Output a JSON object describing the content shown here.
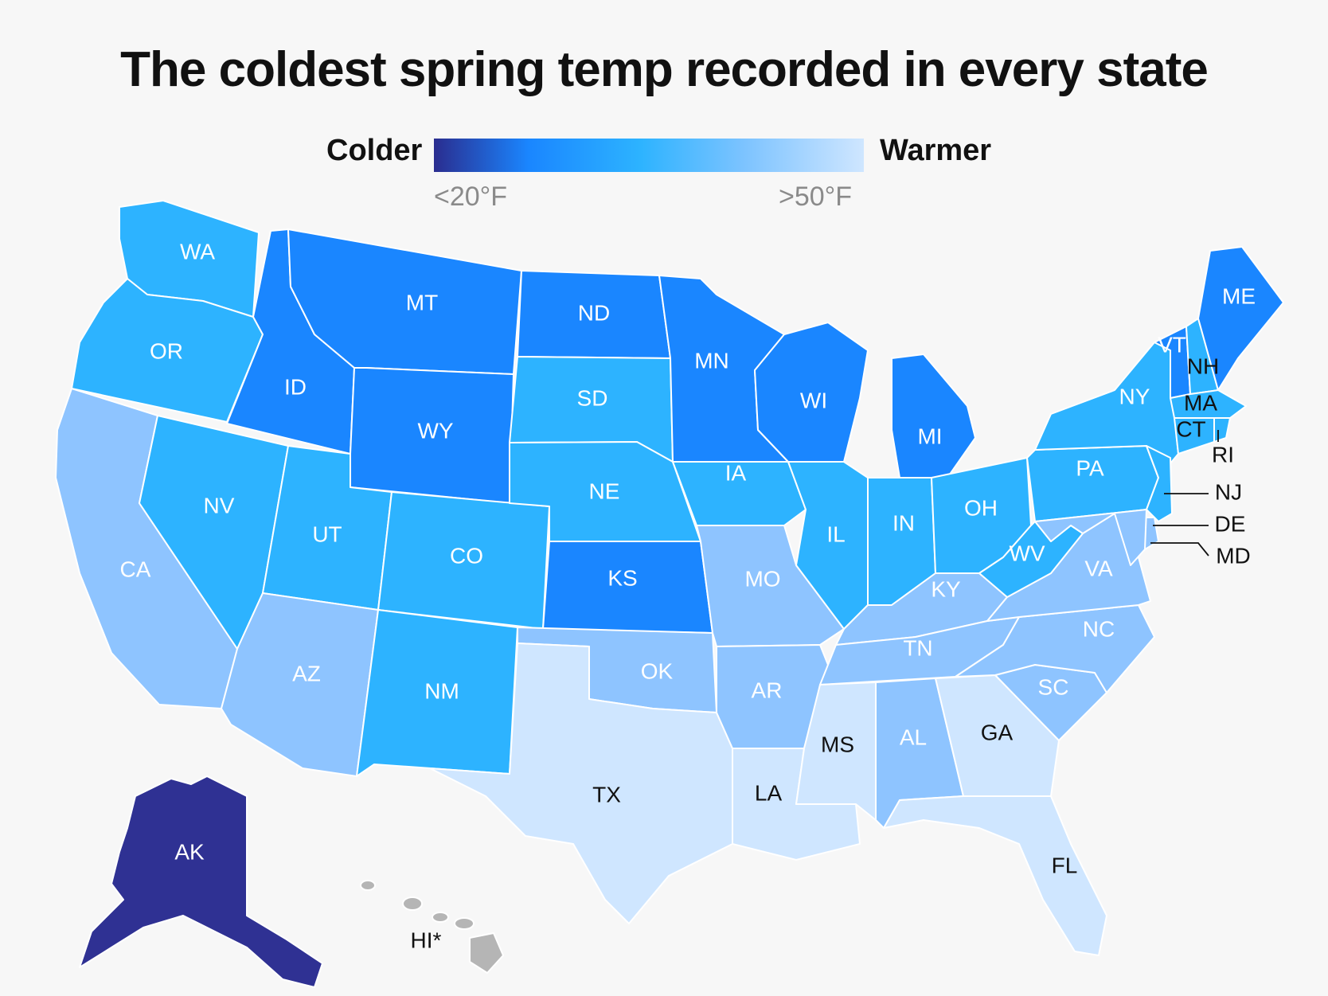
{
  "title": "The coldest spring temp recorded in every state",
  "legend": {
    "colder_label": "Colder",
    "warmer_label": "Warmer",
    "low_tick": "<20°F",
    "high_tick": ">50°F",
    "gradient_colors": [
      "#2a2d8f",
      "#1a86ff",
      "#2db3ff",
      "#7cc3ff",
      "#cfe6ff"
    ]
  },
  "colors": {
    "under_20": "#2f3193",
    "cold": "#1a86ff",
    "cool": "#2db3ff",
    "mild": "#8ec4ff",
    "warm": "#cfe6ff",
    "no_data": "#b5b5b5"
  },
  "states": {
    "WA": {
      "label": "WA",
      "bin": "cool"
    },
    "OR": {
      "label": "OR",
      "bin": "cool"
    },
    "CA": {
      "label": "CA",
      "bin": "mild"
    },
    "ID": {
      "label": "ID",
      "bin": "cold"
    },
    "NV": {
      "label": "NV",
      "bin": "cool"
    },
    "MT": {
      "label": "MT",
      "bin": "cold"
    },
    "WY": {
      "label": "WY",
      "bin": "cold"
    },
    "UT": {
      "label": "UT",
      "bin": "cool"
    },
    "AZ": {
      "label": "AZ",
      "bin": "mild"
    },
    "CO": {
      "label": "CO",
      "bin": "cool"
    },
    "NM": {
      "label": "NM",
      "bin": "cool"
    },
    "ND": {
      "label": "ND",
      "bin": "cold"
    },
    "SD": {
      "label": "SD",
      "bin": "cool"
    },
    "NE": {
      "label": "NE",
      "bin": "cool"
    },
    "KS": {
      "label": "KS",
      "bin": "cold"
    },
    "OK": {
      "label": "OK",
      "bin": "mild"
    },
    "TX": {
      "label": "TX",
      "bin": "warm"
    },
    "MN": {
      "label": "MN",
      "bin": "cold"
    },
    "IA": {
      "label": "IA",
      "bin": "cool"
    },
    "MO": {
      "label": "MO",
      "bin": "mild"
    },
    "AR": {
      "label": "AR",
      "bin": "mild"
    },
    "LA": {
      "label": "LA",
      "bin": "warm"
    },
    "WI": {
      "label": "WI",
      "bin": "cold"
    },
    "IL": {
      "label": "IL",
      "bin": "cool"
    },
    "MI": {
      "label": "MI",
      "bin": "cold"
    },
    "IN": {
      "label": "IN",
      "bin": "cool"
    },
    "OH": {
      "label": "OH",
      "bin": "cool"
    },
    "KY": {
      "label": "KY",
      "bin": "mild"
    },
    "TN": {
      "label": "TN",
      "bin": "mild"
    },
    "MS": {
      "label": "MS",
      "bin": "warm"
    },
    "AL": {
      "label": "AL",
      "bin": "mild"
    },
    "GA": {
      "label": "GA",
      "bin": "warm"
    },
    "FL": {
      "label": "FL",
      "bin": "warm"
    },
    "SC": {
      "label": "SC",
      "bin": "mild"
    },
    "NC": {
      "label": "NC",
      "bin": "mild"
    },
    "VA": {
      "label": "VA",
      "bin": "mild"
    },
    "WV": {
      "label": "WV",
      "bin": "cool"
    },
    "PA": {
      "label": "PA",
      "bin": "cool"
    },
    "NY": {
      "label": "NY",
      "bin": "cool"
    },
    "VT": {
      "label": "VT",
      "bin": "cold"
    },
    "NH": {
      "label": "NH",
      "bin": "cool"
    },
    "ME": {
      "label": "ME",
      "bin": "cold"
    },
    "MA": {
      "label": "MA",
      "bin": "cool"
    },
    "CT": {
      "label": "CT",
      "bin": "cool"
    },
    "RI": {
      "label": "RI",
      "bin": "cool"
    },
    "NJ": {
      "label": "NJ",
      "bin": "cool"
    },
    "DE": {
      "label": "DE",
      "bin": "mild"
    },
    "MD": {
      "label": "MD",
      "bin": "mild"
    },
    "AK": {
      "label": "AK",
      "bin": "under_20"
    },
    "HI": {
      "label": "HI*",
      "bin": "no_data"
    }
  }
}
